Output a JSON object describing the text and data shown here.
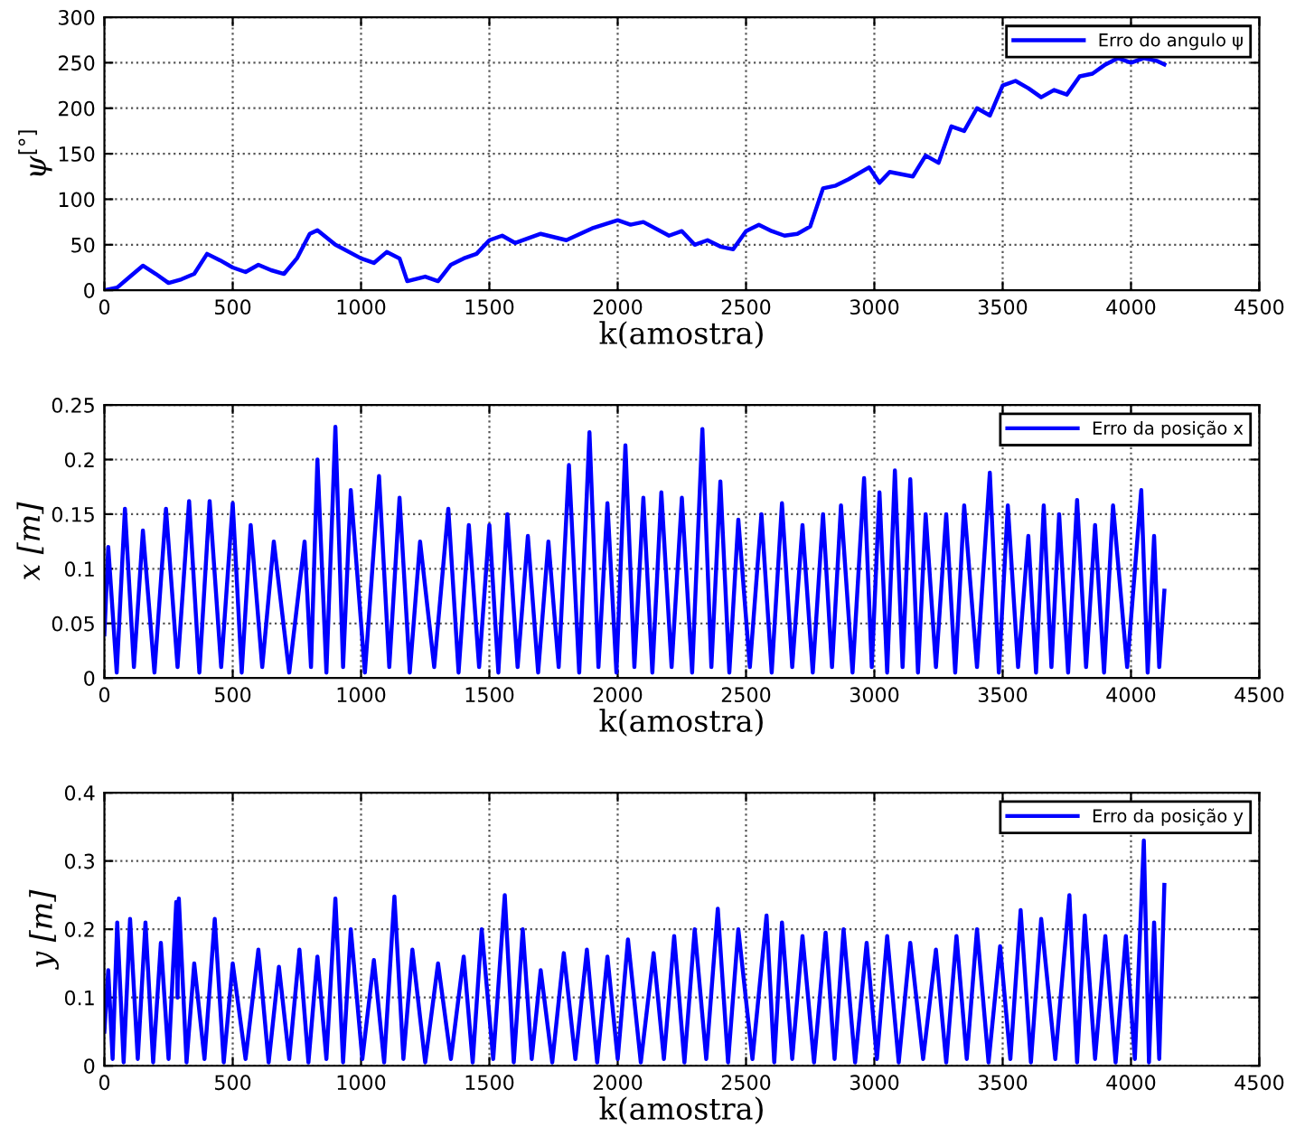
{
  "chart_data": [
    {
      "type": "line",
      "xlabel": "k(amostra)",
      "ylabel": "ψ$^{[°]}$",
      "xlim": [
        0,
        4500
      ],
      "xticks": [
        0,
        500,
        1000,
        1500,
        2000,
        2500,
        3000,
        3500,
        4000,
        4500
      ],
      "ylim": [
        0,
        300
      ],
      "yticks": [
        0,
        50,
        100,
        150,
        200,
        250,
        300
      ],
      "grid": true,
      "legend": "top right",
      "line_style": "solid",
      "series": [
        {
          "name": "Erro do angulo ψ",
          "color": "#0000ff",
          "x": [
            0,
            50,
            100,
            150,
            200,
            250,
            300,
            350,
            400,
            450,
            500,
            550,
            600,
            650,
            700,
            750,
            800,
            830,
            900,
            1000,
            1050,
            1100,
            1150,
            1180,
            1250,
            1300,
            1350,
            1400,
            1450,
            1500,
            1550,
            1600,
            1700,
            1800,
            1900,
            2000,
            2050,
            2100,
            2200,
            2250,
            2300,
            2350,
            2400,
            2450,
            2500,
            2550,
            2600,
            2650,
            2700,
            2750,
            2800,
            2850,
            2900,
            2980,
            3020,
            3060,
            3150,
            3200,
            3250,
            3300,
            3350,
            3400,
            3450,
            3500,
            3550,
            3600,
            3650,
            3700,
            3750,
            3800,
            3850,
            3900,
            3950,
            4000,
            4050,
            4100,
            4130
          ],
          "values": [
            0,
            3,
            15,
            27,
            18,
            8,
            12,
            18,
            40,
            33,
            25,
            20,
            28,
            22,
            18,
            35,
            62,
            66,
            50,
            35,
            30,
            42,
            35,
            10,
            15,
            10,
            28,
            35,
            40,
            55,
            60,
            52,
            62,
            55,
            68,
            77,
            72,
            75,
            60,
            65,
            50,
            55,
            48,
            45,
            65,
            72,
            65,
            60,
            62,
            70,
            112,
            115,
            122,
            135,
            118,
            130,
            125,
            148,
            140,
            180,
            175,
            200,
            192,
            225,
            230,
            222,
            212,
            220,
            215,
            235,
            238,
            248,
            255,
            250,
            255,
            252,
            248
          ]
        }
      ]
    },
    {
      "type": "line",
      "xlabel": "k(amostra)",
      "ylabel": "x [m]",
      "xlim": [
        0,
        4500
      ],
      "xticks": [
        0,
        500,
        1000,
        1500,
        2000,
        2500,
        3000,
        3500,
        4000,
        4500
      ],
      "ylim": [
        0,
        0.25
      ],
      "yticks": [
        0,
        0.05,
        0.1,
        0.15,
        0.2,
        0.25
      ],
      "grid": true,
      "legend": "top right",
      "line_style": "solid",
      "series": [
        {
          "name": "Erro da posição x",
          "color": "#0000ff",
          "x": [
            0,
            15,
            48,
            80,
            115,
            150,
            195,
            240,
            285,
            330,
            370,
            410,
            455,
            500,
            535,
            570,
            615,
            660,
            720,
            780,
            805,
            830,
            865,
            900,
            930,
            960,
            1015,
            1070,
            1110,
            1150,
            1190,
            1230,
            1285,
            1340,
            1380,
            1420,
            1460,
            1500,
            1535,
            1570,
            1610,
            1650,
            1690,
            1730,
            1770,
            1810,
            1850,
            1890,
            1925,
            1960,
            1995,
            2030,
            2065,
            2100,
            2135,
            2170,
            2210,
            2250,
            2290,
            2330,
            2365,
            2400,
            2435,
            2470,
            2515,
            2560,
            2600,
            2640,
            2680,
            2720,
            2760,
            2800,
            2835,
            2870,
            2915,
            2960,
            2990,
            3020,
            3050,
            3080,
            3110,
            3140,
            3170,
            3200,
            3240,
            3280,
            3315,
            3350,
            3400,
            3450,
            3485,
            3520,
            3560,
            3600,
            3630,
            3660,
            3690,
            3720,
            3755,
            3790,
            3825,
            3860,
            3895,
            3930,
            3985,
            4040,
            4065,
            4090,
            4110,
            4130
          ],
          "values": [
            0.04,
            0.12,
            0.005,
            0.155,
            0.01,
            0.135,
            0.005,
            0.155,
            0.01,
            0.162,
            0.005,
            0.162,
            0.01,
            0.16,
            0.005,
            0.14,
            0.01,
            0.125,
            0.005,
            0.125,
            0.01,
            0.2,
            0.005,
            0.23,
            0.01,
            0.172,
            0.005,
            0.185,
            0.01,
            0.165,
            0.005,
            0.125,
            0.01,
            0.155,
            0.005,
            0.14,
            0.01,
            0.14,
            0.005,
            0.15,
            0.01,
            0.13,
            0.005,
            0.125,
            0.01,
            0.195,
            0.005,
            0.225,
            0.01,
            0.16,
            0.005,
            0.213,
            0.01,
            0.165,
            0.005,
            0.17,
            0.01,
            0.165,
            0.005,
            0.228,
            0.01,
            0.18,
            0.005,
            0.145,
            0.01,
            0.15,
            0.005,
            0.16,
            0.01,
            0.14,
            0.005,
            0.15,
            0.01,
            0.158,
            0.005,
            0.183,
            0.01,
            0.17,
            0.005,
            0.19,
            0.01,
            0.182,
            0.005,
            0.15,
            0.01,
            0.15,
            0.005,
            0.158,
            0.01,
            0.188,
            0.005,
            0.158,
            0.01,
            0.13,
            0.005,
            0.158,
            0.01,
            0.15,
            0.005,
            0.163,
            0.01,
            0.14,
            0.005,
            0.158,
            0.01,
            0.172,
            0.005,
            0.13,
            0.01,
            0.08
          ]
        }
      ]
    },
    {
      "type": "line",
      "xlabel": "k(amostra)",
      "ylabel": "y [m]",
      "xlim": [
        0,
        4500
      ],
      "xticks": [
        0,
        500,
        1000,
        1500,
        2000,
        2500,
        3000,
        3500,
        4000,
        4500
      ],
      "ylim": [
        0,
        0.4
      ],
      "yticks": [
        0,
        0.1,
        0.2,
        0.3,
        0.4
      ],
      "grid": true,
      "legend": "top right",
      "line_style": "solid",
      "series": [
        {
          "name": "Erro da posição y",
          "color": "#0000ff",
          "x": [
            0,
            15,
            32,
            50,
            75,
            100,
            130,
            160,
            190,
            220,
            250,
            280,
            285,
            290,
            320,
            350,
            390,
            430,
            465,
            500,
            550,
            600,
            640,
            680,
            720,
            760,
            795,
            830,
            865,
            900,
            930,
            960,
            1005,
            1050,
            1090,
            1130,
            1165,
            1200,
            1250,
            1300,
            1350,
            1400,
            1435,
            1470,
            1515,
            1560,
            1595,
            1630,
            1665,
            1700,
            1745,
            1790,
            1835,
            1880,
            1920,
            1960,
            2000,
            2040,
            2090,
            2140,
            2180,
            2220,
            2260,
            2300,
            2345,
            2390,
            2430,
            2470,
            2525,
            2580,
            2610,
            2640,
            2680,
            2720,
            2765,
            2810,
            2845,
            2880,
            2925,
            2970,
            3010,
            3050,
            3095,
            3140,
            3190,
            3240,
            3280,
            3320,
            3360,
            3400,
            3445,
            3490,
            3530,
            3570,
            3610,
            3650,
            3705,
            3760,
            3790,
            3820,
            3860,
            3900,
            3940,
            3980,
            4015,
            4050,
            4070,
            4090,
            4110,
            4130
          ],
          "values": [
            0.05,
            0.14,
            0.01,
            0.21,
            0.005,
            0.215,
            0.01,
            0.21,
            0.005,
            0.18,
            0.01,
            0.24,
            0.1,
            0.245,
            0.005,
            0.15,
            0.01,
            0.215,
            0.005,
            0.15,
            0.01,
            0.17,
            0.005,
            0.145,
            0.01,
            0.17,
            0.005,
            0.16,
            0.01,
            0.245,
            0.005,
            0.2,
            0.01,
            0.155,
            0.005,
            0.248,
            0.01,
            0.17,
            0.005,
            0.15,
            0.01,
            0.16,
            0.005,
            0.2,
            0.01,
            0.25,
            0.005,
            0.2,
            0.01,
            0.14,
            0.005,
            0.165,
            0.01,
            0.17,
            0.005,
            0.16,
            0.01,
            0.185,
            0.005,
            0.165,
            0.01,
            0.19,
            0.005,
            0.2,
            0.01,
            0.23,
            0.005,
            0.2,
            0.01,
            0.22,
            0.005,
            0.21,
            0.01,
            0.19,
            0.005,
            0.195,
            0.01,
            0.2,
            0.005,
            0.18,
            0.01,
            0.19,
            0.005,
            0.18,
            0.01,
            0.17,
            0.005,
            0.19,
            0.01,
            0.2,
            0.005,
            0.175,
            0.01,
            0.228,
            0.005,
            0.215,
            0.01,
            0.25,
            0.005,
            0.22,
            0.01,
            0.19,
            0.005,
            0.19,
            0.01,
            0.33,
            0.005,
            0.21,
            0.01,
            0.265
          ]
        }
      ]
    }
  ]
}
